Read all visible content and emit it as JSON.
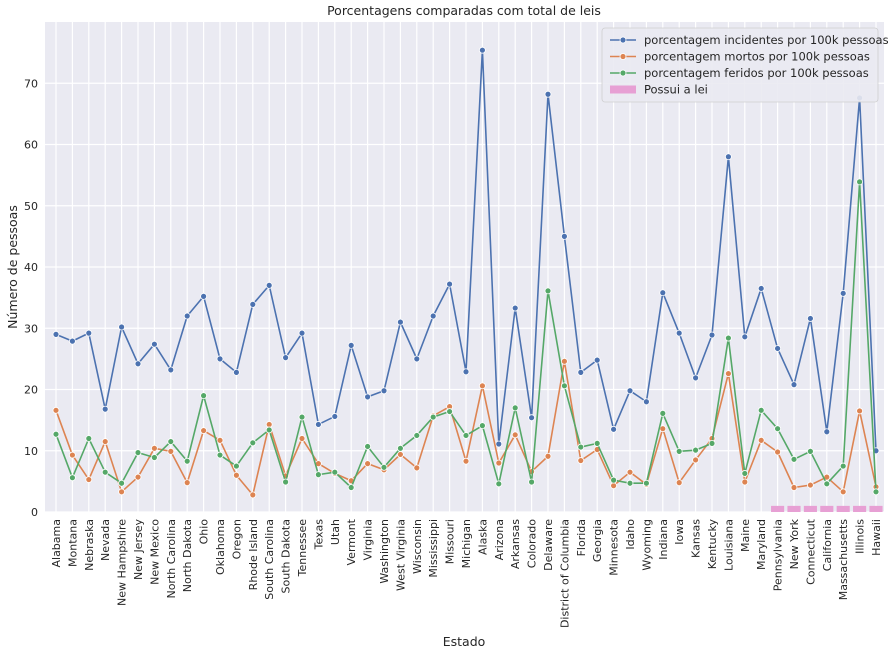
{
  "chart_data": {
    "type": "line",
    "title": "Porcentagens comparadas com total de leis",
    "xlabel": "Estado",
    "ylabel": "Número de pessoas",
    "ylim": [
      0,
      80
    ],
    "yticks": [
      0,
      10,
      20,
      30,
      40,
      50,
      60,
      70
    ],
    "grid": true,
    "legend_position": "top-right",
    "background": "#eaeaf2",
    "categories": [
      "Alabama",
      "Montana",
      "Nebraska",
      "Nevada",
      "New Hampshire",
      "New Jersey",
      "New Mexico",
      "North Carolina",
      "North Dakota",
      "Ohio",
      "Oklahoma",
      "Oregon",
      "Rhode Island",
      "South Carolina",
      "South Dakota",
      "Tennessee",
      "Texas",
      "Utah",
      "Vermont",
      "Virginia",
      "Washington",
      "West Virginia",
      "Wisconsin",
      "Mississippi",
      "Missouri",
      "Michigan",
      "Alaska",
      "Arizona",
      "Arkansas",
      "Colorado",
      "Delaware",
      "District of Columbia",
      "Florida",
      "Georgia",
      "Minnesota",
      "Idaho",
      "Wyoming",
      "Indiana",
      "Iowa",
      "Kansas",
      "Kentucky",
      "Louisiana",
      "Maine",
      "Maryland",
      "Pennsylvania",
      "New York",
      "Connecticut",
      "California",
      "Massachusetts",
      "Illinois",
      "Hawaii"
    ],
    "series": [
      {
        "name": "porcentagem incidentes por 100k pessoas",
        "kind": "line",
        "color": "#4c72b0",
        "values": [
          29.0,
          27.9,
          29.2,
          16.8,
          30.2,
          24.2,
          27.4,
          23.2,
          32.0,
          35.2,
          25.0,
          22.8,
          33.9,
          37.0,
          25.2,
          29.2,
          14.3,
          15.6,
          27.2,
          18.8,
          19.8,
          31.0,
          25.0,
          32.0,
          37.2,
          22.9,
          75.4,
          11.1,
          33.3,
          15.4,
          68.2,
          45.0,
          22.8,
          24.8,
          13.5,
          19.8,
          18.0,
          35.8,
          29.2,
          21.9,
          28.9,
          58.0,
          28.6,
          36.5,
          26.7,
          20.8,
          31.6,
          13.1,
          35.7,
          67.6,
          10.0
        ]
      },
      {
        "name": "porcentagem mortos por 100k pessoas",
        "kind": "line",
        "color": "#dd8452",
        "values": [
          16.6,
          9.3,
          5.3,
          11.5,
          3.3,
          5.7,
          10.4,
          9.9,
          4.8,
          13.3,
          11.7,
          6.0,
          2.8,
          14.3,
          5.9,
          12.0,
          7.9,
          6.3,
          5.1,
          7.9,
          6.9,
          9.4,
          7.2,
          15.7,
          17.2,
          8.3,
          20.6,
          8.0,
          12.6,
          6.6,
          9.1,
          24.6,
          8.4,
          10.2,
          4.3,
          6.5,
          4.5,
          13.6,
          4.8,
          8.5,
          12.0,
          22.6,
          4.9,
          11.7,
          9.8,
          4.0,
          4.4,
          5.7,
          3.3,
          16.5,
          4.1
        ]
      },
      {
        "name": "porcentagem feridos por 100k pessoas",
        "kind": "line",
        "color": "#55a868",
        "values": [
          12.7,
          5.6,
          12.0,
          6.5,
          4.7,
          9.7,
          8.9,
          11.5,
          8.3,
          19.0,
          9.3,
          7.5,
          11.3,
          13.4,
          4.9,
          15.5,
          6.1,
          6.5,
          4.0,
          10.7,
          7.3,
          10.4,
          12.5,
          15.5,
          16.4,
          12.5,
          14.1,
          4.6,
          17.0,
          4.9,
          36.1,
          20.6,
          10.6,
          11.2,
          5.2,
          4.7,
          4.7,
          16.1,
          9.9,
          10.1,
          11.2,
          28.4,
          6.3,
          16.6,
          13.6,
          8.6,
          9.9,
          4.6,
          7.5,
          53.9,
          3.3
        ]
      },
      {
        "name": "Possui a lei",
        "kind": "bar",
        "color": "#e7a0d4",
        "values": [
          0,
          0,
          0,
          0,
          0,
          0,
          0,
          0,
          0,
          0,
          0,
          0,
          0,
          0,
          0,
          0,
          0,
          0,
          0,
          0,
          0,
          0,
          0,
          0,
          0,
          0,
          0,
          0,
          0,
          0,
          0,
          0,
          0,
          0,
          0,
          0,
          0,
          0,
          0,
          0,
          0,
          0,
          0,
          0,
          1,
          1,
          1,
          1,
          1,
          1,
          1
        ]
      }
    ]
  }
}
